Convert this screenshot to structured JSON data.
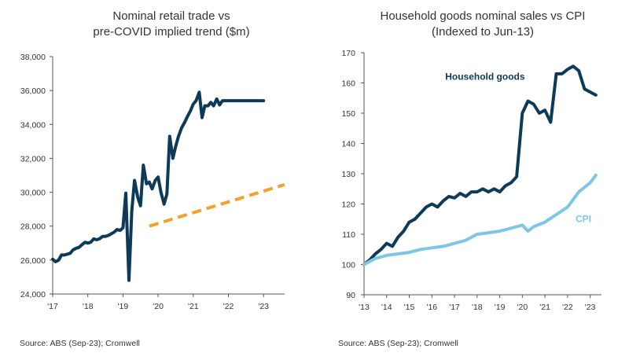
{
  "colors": {
    "navy": "#0d3a57",
    "orange": "#f0a22a",
    "light_blue": "#7fc6e6",
    "axis": "#555555"
  },
  "chart_data": [
    {
      "type": "line",
      "title": [
        "Nominal retail trade vs",
        "pre-COVID implied trend ($m)"
      ],
      "source": "Source: ABS (Sep-23); Cromwell",
      "ylim": [
        24000,
        38000
      ],
      "yticks": [
        "24,000",
        "26,000",
        "28,000",
        "30,000",
        "32,000",
        "34,000",
        "36,000",
        "38,000"
      ],
      "ytick_values": [
        24000,
        26000,
        28000,
        30000,
        32000,
        34000,
        36000,
        38000
      ],
      "xlim": [
        2017.0,
        2023.6
      ],
      "xticks": [
        "'17",
        "'18",
        "'19",
        "'20",
        "'21",
        "'22",
        "'23"
      ],
      "xtick_values": [
        2017.0,
        2018.0,
        2019.0,
        2020.0,
        2021.0,
        2022.0,
        2023.0
      ],
      "grid": false,
      "series": [
        {
          "color_key": "navy",
          "style": "solid",
          "x": [
            2017.0,
            2017.08,
            2017.17,
            2017.25,
            2017.33,
            2017.42,
            2017.5,
            2017.58,
            2017.67,
            2017.75,
            2017.83,
            2017.92,
            2018.0,
            2018.08,
            2018.17,
            2018.25,
            2018.33,
            2018.42,
            2018.5,
            2018.58,
            2018.67,
            2018.75,
            2018.83,
            2018.92,
            2019.0,
            2019.08,
            2019.17,
            2019.25,
            2019.33,
            2019.42,
            2019.5,
            2019.58,
            2019.67,
            2019.75,
            2019.83,
            2019.92,
            2020.0,
            2020.08,
            2020.17,
            2020.25,
            2020.33,
            2020.42,
            2020.5,
            2020.58,
            2020.67,
            2020.75,
            2020.83,
            2020.92,
            2021.0,
            2021.08,
            2021.17,
            2021.25,
            2021.33,
            2021.42,
            2021.5,
            2021.58,
            2021.67,
            2021.75,
            2021.83,
            2021.92,
            2022.0,
            2022.08,
            2022.17,
            2022.25,
            2022.33,
            2022.42,
            2022.5,
            2022.58,
            2022.67,
            2022.75,
            2022.83,
            2022.92,
            2023.0
          ],
          "values": [
            26050,
            25900,
            26000,
            26300,
            26300,
            26350,
            26400,
            26600,
            26700,
            26750,
            26900,
            27050,
            27000,
            27050,
            27250,
            27200,
            27250,
            27400,
            27400,
            27450,
            27550,
            27650,
            27800,
            27750,
            27900,
            29950,
            24800,
            28900,
            30700,
            29700,
            29200,
            31600,
            30500,
            30600,
            30200,
            30700,
            30900,
            30000,
            29300,
            29900,
            33300,
            32000,
            32700,
            33300,
            33800,
            34100,
            34450,
            34800,
            35200,
            35400,
            35900,
            34400,
            35100,
            35100,
            35300,
            35100,
            35500,
            35150,
            35400,
            35400,
            35400,
            35400,
            35400,
            35400,
            35400,
            35400,
            35400,
            35400,
            35400,
            35400,
            35400,
            35400,
            35400
          ]
        },
        {
          "color_key": "orange",
          "style": "dashed",
          "x": [
            2019.75,
            2023.6
          ],
          "values": [
            28000,
            30450
          ]
        }
      ]
    },
    {
      "type": "line",
      "title": [
        "Household goods nominal sales vs CPI",
        "(Indexed to Jun-13)"
      ],
      "source": "Source: ABS (Sep-23); Cromwell",
      "ylim": [
        90,
        170
      ],
      "yticks": [
        "90",
        "100",
        "110",
        "120",
        "130",
        "140",
        "150",
        "160",
        "170"
      ],
      "ytick_values": [
        90,
        100,
        110,
        120,
        130,
        140,
        150,
        160,
        170
      ],
      "xlim": [
        2013.0,
        2023.5
      ],
      "xticks": [
        "'13",
        "'14",
        "'15",
        "'16",
        "'17",
        "'18",
        "'19",
        "'20",
        "'21",
        "'22",
        "'23"
      ],
      "xtick_values": [
        2013,
        2014,
        2015,
        2016,
        2017,
        2018,
        2019,
        2020,
        2021,
        2022,
        2023
      ],
      "grid": false,
      "series": [
        {
          "name": "Household goods",
          "color_key": "navy",
          "label_pos": [
            2018.35,
            161
          ],
          "x": [
            2013.0,
            2013.25,
            2013.5,
            2013.75,
            2014.0,
            2014.25,
            2014.5,
            2014.75,
            2015.0,
            2015.25,
            2015.5,
            2015.75,
            2016.0,
            2016.25,
            2016.5,
            2016.75,
            2017.0,
            2017.25,
            2017.5,
            2017.75,
            2018.0,
            2018.25,
            2018.5,
            2018.75,
            2019.0,
            2019.25,
            2019.5,
            2019.75,
            2020.0,
            2020.25,
            2020.5,
            2020.75,
            2021.0,
            2021.25,
            2021.5,
            2021.75,
            2022.0,
            2022.25,
            2022.5,
            2022.75,
            2023.0,
            2023.25
          ],
          "values": [
            100,
            101.5,
            103.5,
            105,
            107,
            106,
            109,
            111,
            114,
            115,
            117,
            119,
            120,
            119,
            121,
            122.5,
            122,
            123.5,
            122.5,
            124,
            124,
            125,
            124,
            125,
            124,
            126,
            127,
            129,
            150,
            154,
            153,
            150,
            151,
            147,
            163,
            163,
            164.5,
            165.5,
            164,
            158,
            157,
            156
          ]
        },
        {
          "name": "CPI",
          "color_key": "light_blue",
          "label_pos": [
            2022.7,
            114
          ],
          "x": [
            2013.0,
            2013.5,
            2014.0,
            2014.5,
            2015.0,
            2015.5,
            2016.0,
            2016.5,
            2017.0,
            2017.5,
            2018.0,
            2018.5,
            2019.0,
            2019.5,
            2020.0,
            2020.25,
            2020.5,
            2021.0,
            2021.5,
            2022.0,
            2022.5,
            2023.0,
            2023.25
          ],
          "values": [
            100,
            102,
            103,
            103.5,
            104,
            105,
            105.5,
            106,
            107,
            108,
            110,
            110.5,
            111,
            112,
            113,
            111,
            112.5,
            114,
            116.5,
            119,
            124,
            127,
            129.5
          ]
        }
      ]
    }
  ]
}
